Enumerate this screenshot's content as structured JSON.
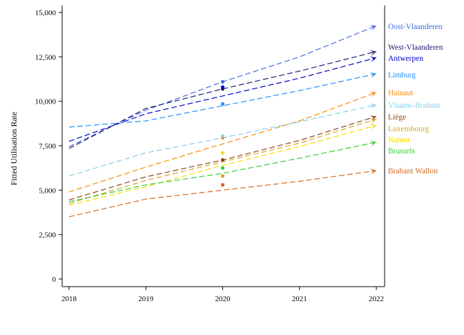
{
  "chart_data": {
    "type": "line",
    "title": "",
    "xlabel": "",
    "ylabel": "Fitted Utilisation Rate",
    "x": [
      2018,
      2019,
      2020,
      2021,
      2022
    ],
    "x_ticks": [
      "2018",
      "2019",
      "2020",
      "2021",
      "2022"
    ],
    "y_ticks": [
      "0",
      "2,500",
      "5,000",
      "7,500",
      "10,000",
      "12,500",
      "15,000"
    ],
    "y_tick_values": [
      0,
      2500,
      5000,
      7500,
      10000,
      12500,
      15000
    ],
    "ylim": [
      -400,
      15500
    ],
    "xlim": [
      2018,
      2022.1
    ],
    "grid": false,
    "legend": "direct labels at line ends (right)",
    "series": [
      {
        "name": "Oost-Vlaanderen",
        "color": "#4169e1",
        "values": [
          7450,
          9500,
          11100,
          12500,
          14250
        ],
        "point_2020": 11100
      },
      {
        "name": "West-Vlaanderen",
        "color": "#191970",
        "values": [
          7350,
          9600,
          10700,
          11700,
          12800
        ],
        "point_2020": 10700
      },
      {
        "name": "Antwerpen",
        "color": "#0000cd",
        "values": [
          7750,
          9300,
          10300,
          11300,
          12450
        ],
        "point_2020": 10800
      },
      {
        "name": "Limburg",
        "color": "#1e90ff",
        "values": [
          8550,
          8900,
          9750,
          10600,
          11550
        ],
        "point_2020": 9850
      },
      {
        "name": "Hainaut",
        "color": "#ff8c00",
        "values": [
          4900,
          6300,
          7600,
          8900,
          10500
        ],
        "point_2020": 7950
      },
      {
        "name": "Vlaams-Brabant",
        "color": "#87ceeb",
        "values": [
          5800,
          7100,
          7950,
          8850,
          9800
        ],
        "point_2020": 8050
      },
      {
        "name": "Liège",
        "color": "#8b4513",
        "values": [
          4450,
          5750,
          6700,
          7800,
          9150
        ],
        "point_2020": 6700
      },
      {
        "name": "Luxembourg",
        "color": "#daa520",
        "values": [
          4250,
          5550,
          6600,
          7650,
          9000
        ],
        "point_2020": 5800
      },
      {
        "name": "Namur",
        "color": "#ffd700",
        "values": [
          4150,
          5200,
          6400,
          7450,
          8650
        ],
        "point_2020": 7100
      },
      {
        "name": "Brussels",
        "color": "#32cd32",
        "values": [
          4350,
          5300,
          5950,
          6800,
          7700
        ],
        "point_2020": 6250
      },
      {
        "name": "Brabant Wallon",
        "color": "#d2691e",
        "values": [
          3500,
          4500,
          5000,
          5500,
          6100
        ],
        "point_2020": 5300
      }
    ]
  }
}
